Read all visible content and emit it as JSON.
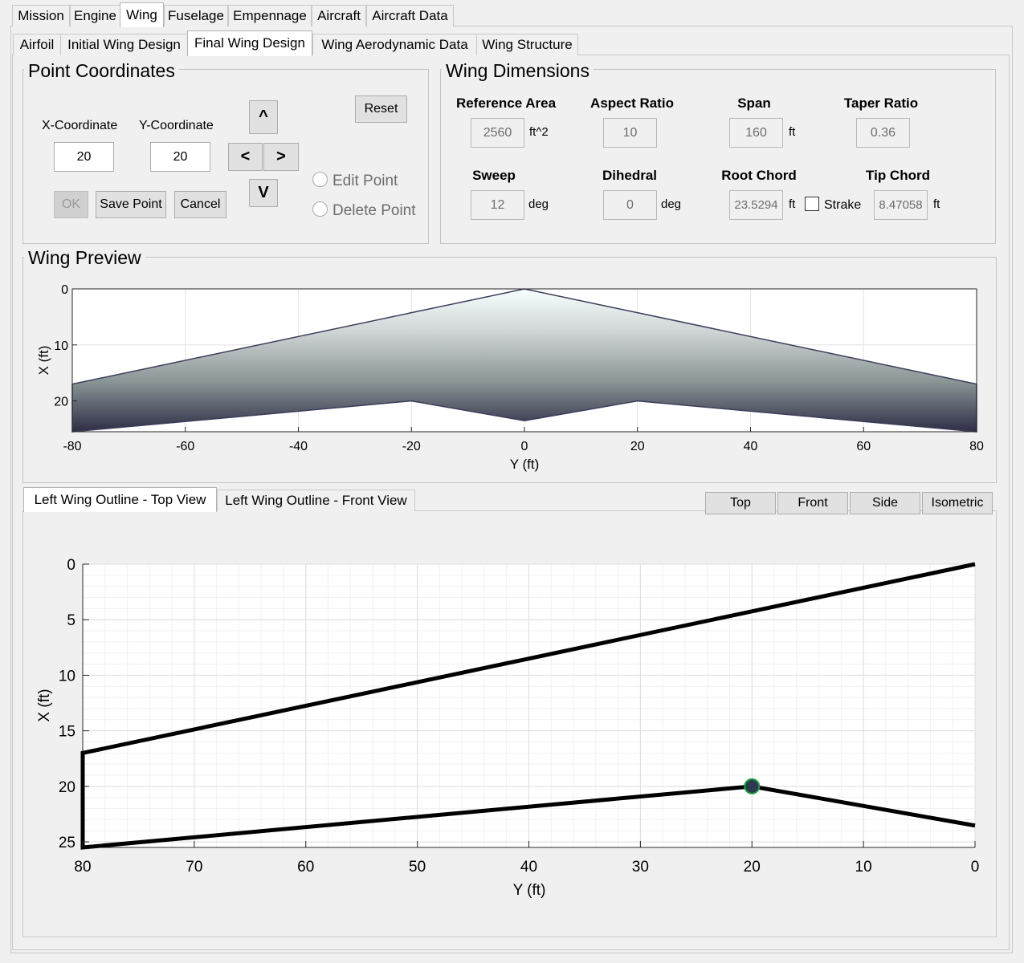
{
  "main_tabs": [
    "Mission",
    "Engine",
    "Wing",
    "Fuselage",
    "Empennage",
    "Aircraft",
    "Aircraft Data"
  ],
  "wing_tabs": [
    "Airfoil",
    "Initial Wing Design",
    "Final Wing Design",
    "Wing Aerodynamic Data",
    "Wing Structure"
  ],
  "point_coordinates": {
    "title": "Point Coordinates",
    "x_label": "X-Coordinate",
    "y_label": "Y-Coordinate",
    "x_value": "20",
    "y_value": "20",
    "up": "^",
    "down": "V",
    "left": "<",
    "right": ">",
    "reset": "Reset",
    "ok": "OK",
    "save": "Save Point",
    "cancel": "Cancel",
    "edit_point": "Edit Point",
    "delete_point": "Delete Point"
  },
  "wing_dimensions": {
    "title": "Wing Dimensions",
    "reference_area": {
      "label": "Reference Area",
      "value": "2560",
      "unit": "ft^2"
    },
    "aspect_ratio": {
      "label": "Aspect Ratio",
      "value": "10"
    },
    "span": {
      "label": "Span",
      "value": "160",
      "unit": "ft"
    },
    "taper_ratio": {
      "label": "Taper Ratio",
      "value": "0.36"
    },
    "sweep": {
      "label": "Sweep",
      "value": "12",
      "unit": "deg"
    },
    "dihedral": {
      "label": "Dihedral",
      "value": "0",
      "unit": "deg"
    },
    "root_chord": {
      "label": "Root Chord",
      "value": "23.5294",
      "unit": "ft"
    },
    "strake": {
      "label": "Strake"
    },
    "tip_chord": {
      "label": "Tip Chord",
      "value": "8.47058",
      "unit": "ft"
    }
  },
  "preview": {
    "title": "Wing Preview",
    "xlabel": "Y (ft)",
    "ylabel": "X (ft)",
    "xticks": [
      "-80",
      "-60",
      "-40",
      "-20",
      "0",
      "20",
      "40",
      "60",
      "80"
    ],
    "yticks": [
      "0",
      "10",
      "20"
    ]
  },
  "outline": {
    "tabs": [
      "Left Wing Outline - Top View",
      "Left Wing Outline - Front View"
    ],
    "view_buttons": [
      "Top",
      "Front",
      "Side",
      "Isometric"
    ],
    "xlabel": "Y (ft)",
    "ylabel": "X (ft)",
    "xticks": [
      "80",
      "70",
      "60",
      "50",
      "40",
      "30",
      "20",
      "10",
      "0"
    ],
    "yticks": [
      "0",
      "5",
      "10",
      "15",
      "20",
      "25"
    ]
  },
  "chart_data": [
    {
      "type": "area",
      "x": [
        -80,
        -20,
        0,
        20,
        80
      ],
      "leading_edge": [
        17,
        4.25,
        0,
        4.25,
        17
      ],
      "trailing_edge": [
        25.5,
        20,
        23.53,
        20,
        25.5
      ],
      "xlim": [
        -80,
        80
      ],
      "ylim": [
        0,
        25.5
      ],
      "y_reversed": true,
      "grid": true
    },
    {
      "type": "line",
      "x": [
        0,
        80,
        80,
        20,
        0
      ],
      "y": [
        0,
        17,
        25.5,
        20,
        23.53
      ],
      "selected_point": {
        "x": 20,
        "y": 20
      },
      "xlim": [
        80,
        0
      ],
      "ylim": [
        0,
        25.5
      ],
      "y_reversed": true,
      "grid": true,
      "minor_grid": true
    }
  ]
}
